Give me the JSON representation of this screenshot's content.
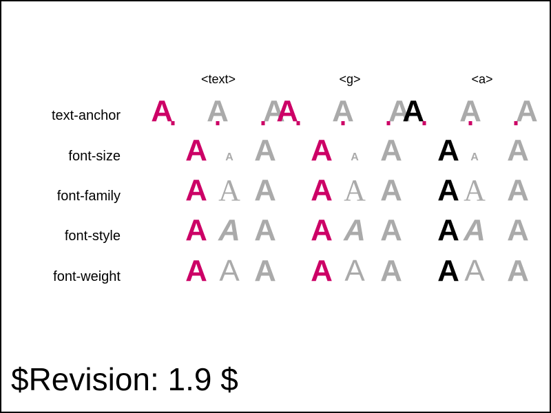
{
  "columns": [
    "<text>",
    "<g>",
    "<a>"
  ],
  "rows": [
    "text-anchor",
    "font-size",
    "font-family",
    "font-style",
    "font-weight"
  ],
  "glyph": "A",
  "revision": "$Revision: 1.9 $",
  "colors": {
    "magenta": "#cc0066",
    "gray": "#aaaaaa",
    "black": "#000000",
    "border": "#000000"
  },
  "column_primary_color": [
    "magenta",
    "magenta",
    "black"
  ],
  "icons": {
    "anchor_marker": "magenta-dot-anchor-marker"
  }
}
